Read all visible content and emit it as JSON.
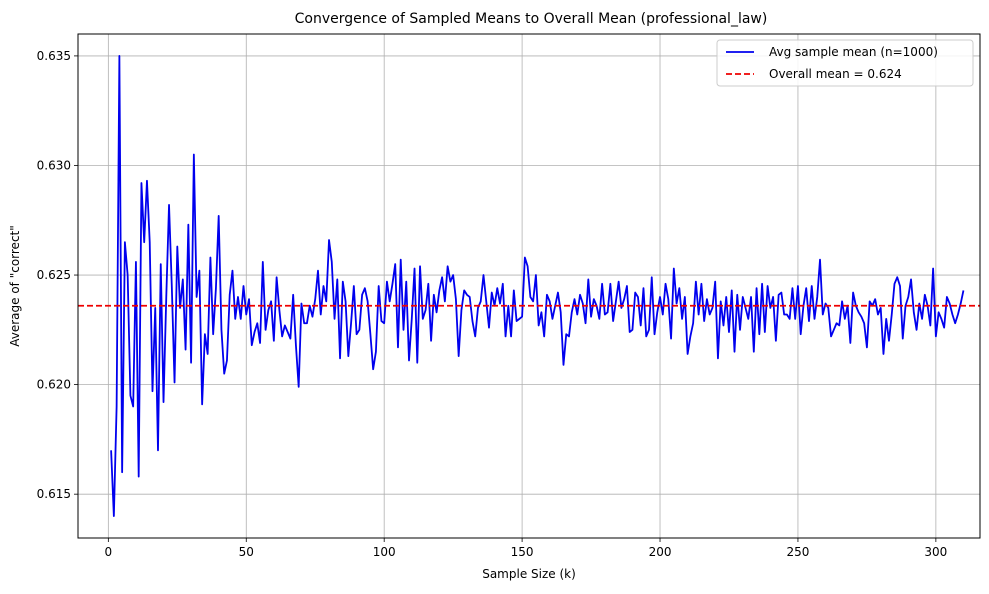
{
  "chart_data": {
    "type": "line",
    "title": "Convergence of Sampled Means to Overall Mean (professional_law)",
    "xlabel": "Sample Size (k)",
    "ylabel": "Average of \"correct\"",
    "xlim": [
      -11,
      316
    ],
    "ylim": [
      0.613,
      0.636
    ],
    "xticks": [
      0,
      50,
      100,
      150,
      200,
      250,
      300
    ],
    "yticks": [
      0.615,
      0.62,
      0.625,
      0.63,
      0.635
    ],
    "ytick_labels": [
      "0.615",
      "0.620",
      "0.625",
      "0.630",
      "0.635"
    ],
    "grid": true,
    "legend_position": "top-right",
    "series": [
      {
        "name": "Avg sample mean (n=1000)",
        "color": "#0000ee",
        "style": "solid",
        "x_start": 1,
        "x_step": 1,
        "values": [
          0.617,
          0.614,
          0.619,
          0.635,
          0.616,
          0.6265,
          0.625,
          0.6195,
          0.619,
          0.6256,
          0.6158,
          0.6292,
          0.6265,
          0.6293,
          0.6265,
          0.6197,
          0.6235,
          0.617,
          0.6255,
          0.6192,
          0.624,
          0.6282,
          0.6245,
          0.6201,
          0.6263,
          0.6235,
          0.6248,
          0.6216,
          0.6273,
          0.621,
          0.6305,
          0.624,
          0.6252,
          0.6191,
          0.6223,
          0.6214,
          0.6258,
          0.6223,
          0.6244,
          0.6277,
          0.6225,
          0.6205,
          0.6211,
          0.6241,
          0.6252,
          0.623,
          0.624,
          0.623,
          0.6245,
          0.6232,
          0.6239,
          0.6218,
          0.6224,
          0.6228,
          0.6219,
          0.6256,
          0.6225,
          0.6234,
          0.6238,
          0.622,
          0.6249,
          0.6234,
          0.6222,
          0.6227,
          0.6224,
          0.6221,
          0.6241,
          0.6218,
          0.6199,
          0.6237,
          0.6228,
          0.6228,
          0.6236,
          0.6231,
          0.6239,
          0.6252,
          0.6232,
          0.6245,
          0.6238,
          0.6266,
          0.6256,
          0.623,
          0.6248,
          0.6212,
          0.6247,
          0.6238,
          0.6213,
          0.6228,
          0.6245,
          0.6223,
          0.6225,
          0.6241,
          0.6244,
          0.6238,
          0.6223,
          0.6207,
          0.6215,
          0.6245,
          0.6229,
          0.6228,
          0.6247,
          0.6238,
          0.6246,
          0.6255,
          0.6217,
          0.6257,
          0.6225,
          0.6247,
          0.6211,
          0.623,
          0.6253,
          0.621,
          0.6254,
          0.623,
          0.6234,
          0.6246,
          0.622,
          0.6241,
          0.6233,
          0.6243,
          0.6249,
          0.6238,
          0.6254,
          0.6247,
          0.625,
          0.6239,
          0.6213,
          0.6234,
          0.6243,
          0.6241,
          0.624,
          0.6229,
          0.6222,
          0.6235,
          0.6238,
          0.625,
          0.6238,
          0.6226,
          0.6242,
          0.6236,
          0.6244,
          0.6237,
          0.6246,
          0.6222,
          0.6236,
          0.6222,
          0.6243,
          0.6229,
          0.623,
          0.6231,
          0.6258,
          0.6254,
          0.624,
          0.6238,
          0.625,
          0.6227,
          0.6233,
          0.6222,
          0.6241,
          0.6238,
          0.623,
          0.6236,
          0.6242,
          0.6233,
          0.6209,
          0.6223,
          0.6222,
          0.6233,
          0.6239,
          0.6232,
          0.6241,
          0.6237,
          0.6228,
          0.6248,
          0.6231,
          0.6239,
          0.6236,
          0.623,
          0.6246,
          0.6232,
          0.6233,
          0.6246,
          0.6229,
          0.6238,
          0.6247,
          0.6235,
          0.6239,
          0.6245,
          0.6224,
          0.6225,
          0.6242,
          0.624,
          0.6227,
          0.6244,
          0.6222,
          0.6225,
          0.6249,
          0.6223,
          0.6233,
          0.624,
          0.6232,
          0.6246,
          0.6239,
          0.6221,
          0.6253,
          0.6237,
          0.6244,
          0.623,
          0.624,
          0.6214,
          0.6222,
          0.6228,
          0.6247,
          0.6232,
          0.6246,
          0.6229,
          0.6239,
          0.6232,
          0.6235,
          0.6247,
          0.6212,
          0.6238,
          0.6227,
          0.624,
          0.6224,
          0.6243,
          0.6215,
          0.6241,
          0.6225,
          0.624,
          0.6235,
          0.623,
          0.624,
          0.6215,
          0.6244,
          0.6223,
          0.6246,
          0.6224,
          0.6245,
          0.6235,
          0.624,
          0.622,
          0.6241,
          0.6242,
          0.6232,
          0.6232,
          0.623,
          0.6244,
          0.623,
          0.6245,
          0.6223,
          0.6236,
          0.6244,
          0.6229,
          0.6245,
          0.623,
          0.624,
          0.6257,
          0.6232,
          0.6237,
          0.6235,
          0.6222,
          0.6225,
          0.6228,
          0.6227,
          0.6238,
          0.623,
          0.6236,
          0.6219,
          0.6242,
          0.6236,
          0.6233,
          0.6231,
          0.6228,
          0.6217,
          0.6238,
          0.6236,
          0.6239,
          0.6232,
          0.6235,
          0.6214,
          0.623,
          0.622,
          0.6232,
          0.6246,
          0.6249,
          0.6245,
          0.6221,
          0.6236,
          0.624,
          0.6248,
          0.6233,
          0.6225,
          0.6237,
          0.623,
          0.6241,
          0.6236,
          0.6227,
          0.6253,
          0.6222,
          0.6233,
          0.623,
          0.6226,
          0.624,
          0.6237,
          0.6232,
          0.6228,
          0.6232,
          0.6237,
          0.6243
        ]
      },
      {
        "name": "Overall mean = 0.624",
        "color": "#ee0000",
        "style": "dashed",
        "value": 0.6236
      }
    ]
  }
}
